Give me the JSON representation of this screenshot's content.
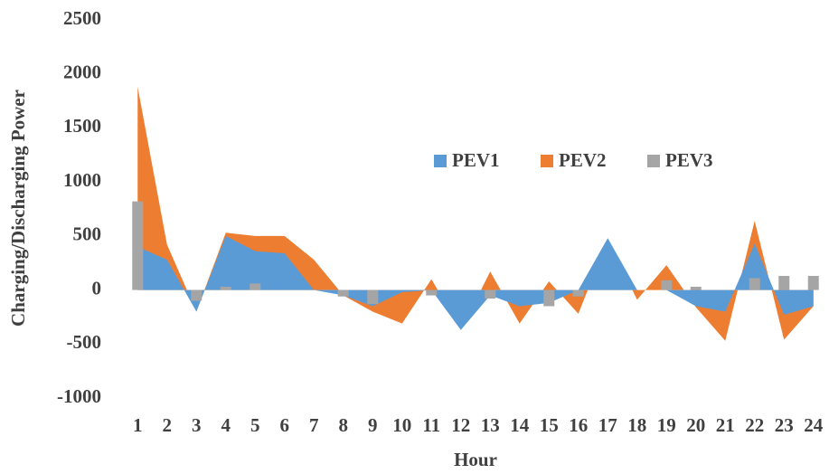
{
  "chart_data": {
    "type": "area",
    "x_label": "Hour",
    "y_label": "Charging/Discharging Power",
    "categories": [
      "1",
      "2",
      "3",
      "4",
      "5",
      "6",
      "7",
      "8",
      "9",
      "10",
      "11",
      "12",
      "13",
      "14",
      "15",
      "16",
      "17",
      "18",
      "19",
      "20",
      "21",
      "22",
      "23",
      "24"
    ],
    "series": [
      {
        "name": "PEV1",
        "color": "#5b9bd5",
        "kind": "area",
        "values": [
          400,
          280,
          -200,
          500,
          360,
          340,
          0,
          -50,
          -150,
          -20,
          0,
          -370,
          -50,
          -150,
          -120,
          0,
          480,
          0,
          0,
          -150,
          -200,
          430,
          -230,
          -150
        ]
      },
      {
        "name": "PEV2",
        "color": "#ed7d31",
        "kind": "area",
        "values": [
          1880,
          420,
          -200,
          530,
          500,
          500,
          280,
          -50,
          -200,
          -310,
          100,
          -370,
          170,
          -310,
          80,
          -220,
          470,
          -90,
          230,
          -160,
          -470,
          640,
          -460,
          -150
        ]
      },
      {
        "name": "PEV3",
        "color": "#a5a5a5",
        "kind": "bar",
        "values": [
          820,
          0,
          -100,
          30,
          60,
          0,
          0,
          -60,
          -130,
          0,
          -50,
          0,
          -80,
          0,
          -150,
          -60,
          0,
          0,
          90,
          30,
          0,
          110,
          130,
          130
        ]
      }
    ],
    "ylim": [
      -1000,
      2500
    ],
    "yticks": [
      -1000,
      -500,
      0,
      500,
      1000,
      1500,
      2000,
      2500
    ],
    "grid": false,
    "legend": "center"
  }
}
